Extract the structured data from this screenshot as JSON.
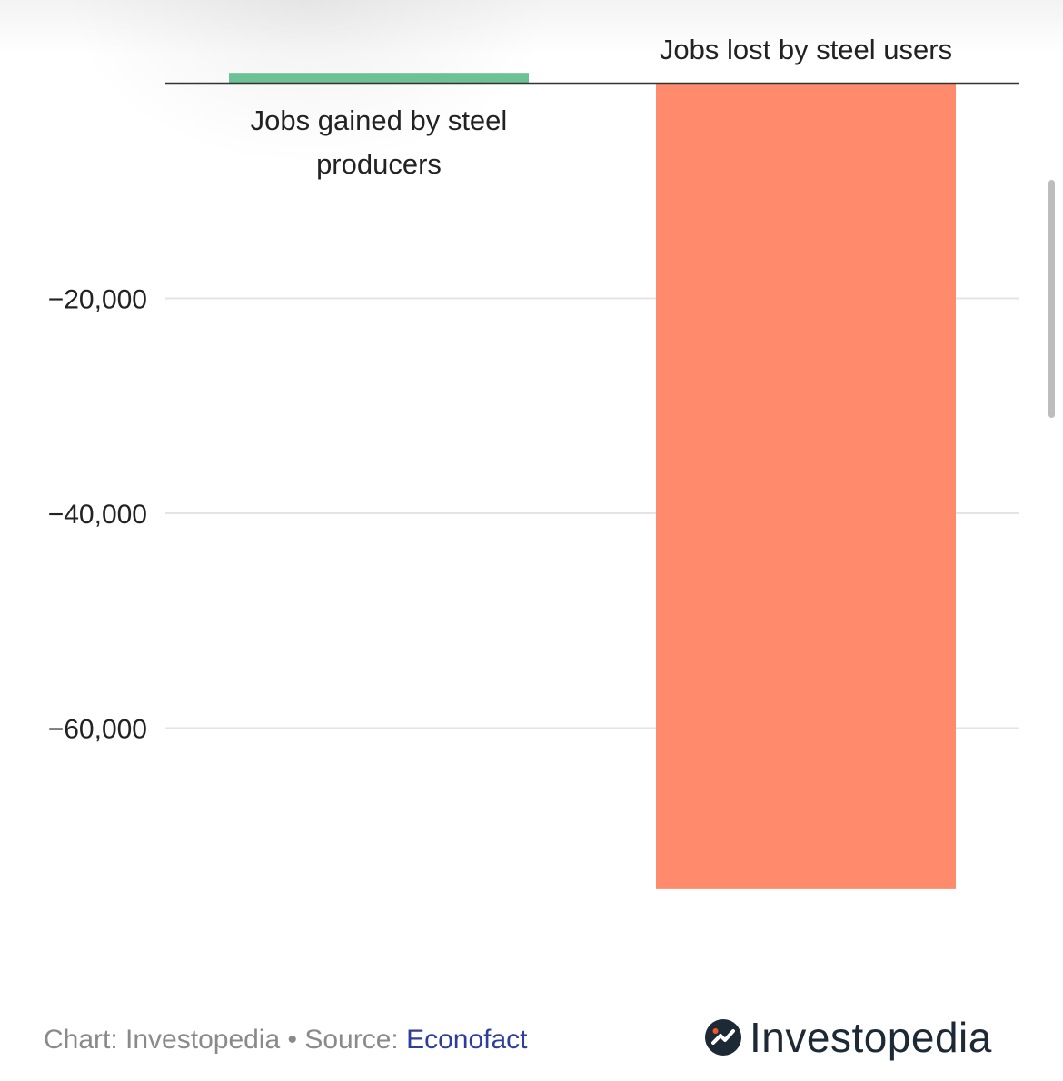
{
  "chart_data": {
    "type": "bar",
    "categories": [
      "Jobs gained by steel producers",
      "Jobs lost by steel users"
    ],
    "category_label_lines": [
      [
        "Jobs gained by steel",
        "producers"
      ],
      [
        "Jobs lost by steel users"
      ]
    ],
    "values": [
      1000,
      -75000
    ],
    "colors": [
      "#6cc295",
      "#ff8a6c"
    ],
    "title": "",
    "xlabel": "",
    "ylabel": "",
    "ylim": [
      -85000,
      0
    ],
    "yticks": [
      -20000,
      -40000,
      -60000
    ],
    "ytick_labels": [
      "−20,000",
      "−40,000",
      "−60,000"
    ],
    "grid": true,
    "legend": "none"
  },
  "footer": {
    "credit": "Chart: Investopedia • Source: ",
    "source_link": "Econofact"
  },
  "brand": {
    "name": "Investopedia",
    "logo_icon": "investopedia-logo-icon",
    "accent_color": "#f15a24",
    "dark_color": "#1d2a35"
  }
}
